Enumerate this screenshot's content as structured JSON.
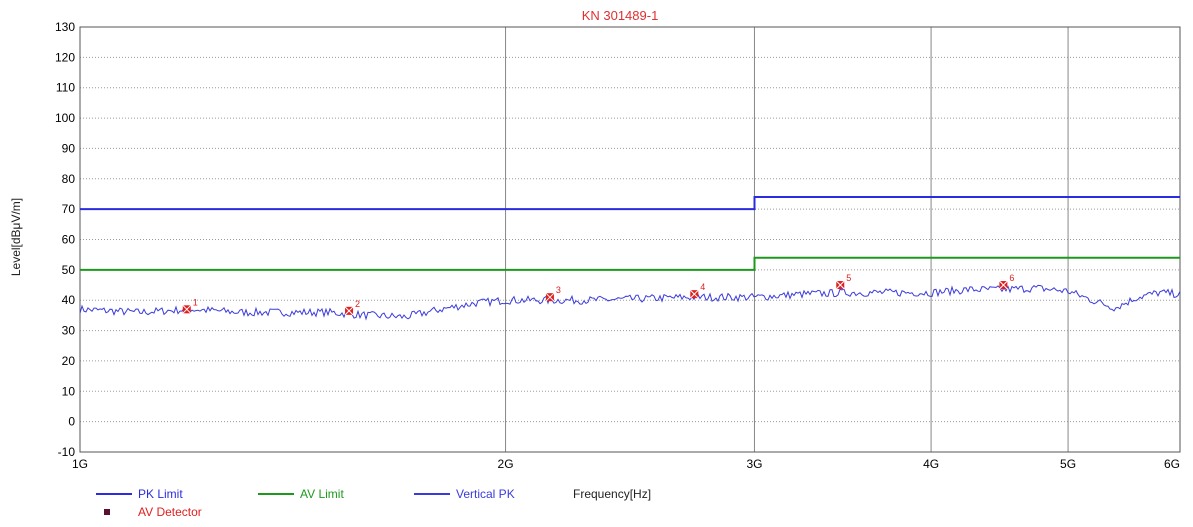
{
  "chart_data": {
    "type": "line",
    "title": "KN 301489-1",
    "xlabel": "Frequency[Hz]",
    "ylabel": "Level[dBμV/m]",
    "x_scale": "log",
    "xlim": [
      1000000000,
      6000000000
    ],
    "ylim": [
      -10,
      130
    ],
    "grid": true,
    "x_ticks": [
      {
        "value": 1000000000,
        "label": "1G"
      },
      {
        "value": 2000000000,
        "label": "2G"
      },
      {
        "value": 3000000000,
        "label": "3G"
      },
      {
        "value": 4000000000,
        "label": "4G"
      },
      {
        "value": 5000000000,
        "label": "5G"
      },
      {
        "value": 6000000000,
        "label": "6G"
      }
    ],
    "y_ticks": [
      -10,
      0,
      10,
      20,
      30,
      40,
      50,
      60,
      70,
      80,
      90,
      100,
      110,
      120,
      130
    ],
    "series": [
      {
        "name": "PK Limit",
        "color": "#2b2bdf",
        "points": [
          [
            1000000000,
            70
          ],
          [
            3000000000,
            70
          ],
          [
            3000000000,
            74
          ],
          [
            6000000000,
            74
          ]
        ]
      },
      {
        "name": "AV Limit",
        "color": "#1d9a1d",
        "points": [
          [
            1000000000,
            50
          ],
          [
            3000000000,
            50
          ],
          [
            3000000000,
            54
          ],
          [
            6000000000,
            54
          ]
        ]
      },
      {
        "name": "Vertical PK",
        "color": "#3b3bdc",
        "points": [
          [
            1000000000,
            37
          ],
          [
            1100000000,
            36
          ],
          [
            1200000000,
            37
          ],
          [
            1300000000,
            36
          ],
          [
            1400000000,
            36
          ],
          [
            1500000000,
            36
          ],
          [
            1600000000,
            35
          ],
          [
            1700000000,
            34.5
          ],
          [
            1800000000,
            37
          ],
          [
            1900000000,
            39
          ],
          [
            2000000000,
            40
          ],
          [
            2150000000,
            40
          ],
          [
            2300000000,
            40
          ],
          [
            2500000000,
            40.5
          ],
          [
            2700000000,
            41
          ],
          [
            2900000000,
            41
          ],
          [
            3000000000,
            41
          ],
          [
            3250000000,
            42
          ],
          [
            3500000000,
            42.5
          ],
          [
            3750000000,
            42.5
          ],
          [
            4000000000,
            42.5
          ],
          [
            4250000000,
            43.5
          ],
          [
            4500000000,
            43.5
          ],
          [
            4750000000,
            44
          ],
          [
            5000000000,
            43
          ],
          [
            5200000000,
            40
          ],
          [
            5400000000,
            37.5
          ],
          [
            5600000000,
            41
          ],
          [
            5800000000,
            42.5
          ],
          [
            6000000000,
            42
          ]
        ]
      },
      {
        "name": "AV Detector",
        "color": "#e02020",
        "marker": "square",
        "points": [
          {
            "x": 1190000000,
            "y": 37,
            "label": "1"
          },
          {
            "x": 1550000000,
            "y": 36.5,
            "label": "2"
          },
          {
            "x": 2150000000,
            "y": 41,
            "label": "3"
          },
          {
            "x": 2720000000,
            "y": 42,
            "label": "4"
          },
          {
            "x": 3450000000,
            "y": 45,
            "label": "5"
          },
          {
            "x": 4500000000,
            "y": 45,
            "label": "6"
          }
        ]
      }
    ],
    "legend_position": "bottom-left"
  }
}
